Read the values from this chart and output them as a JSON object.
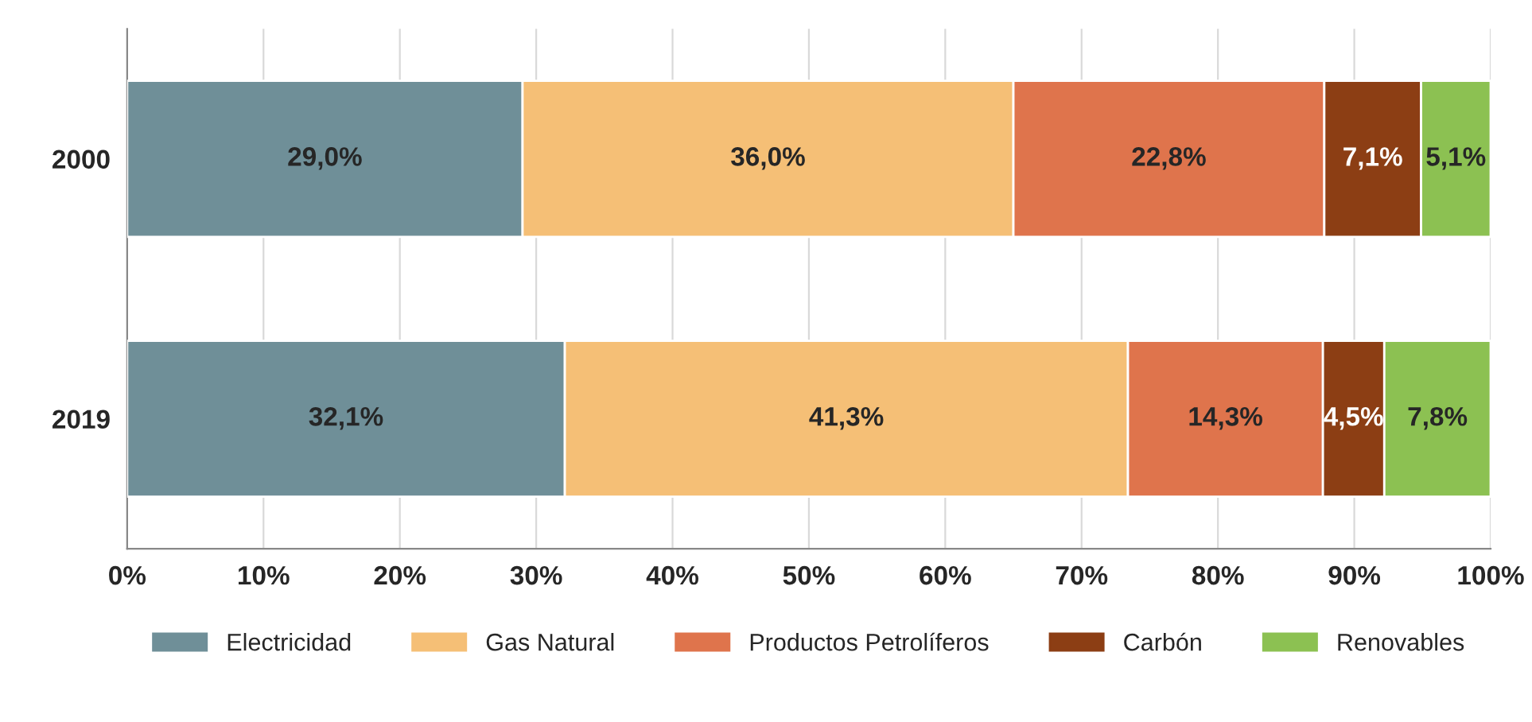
{
  "chart_data": {
    "type": "bar",
    "orientation": "horizontal",
    "stacked": true,
    "categories": [
      "2000",
      "2019"
    ],
    "series": [
      {
        "name": "Electricidad",
        "color": "#6f8f98",
        "values": [
          29.0,
          32.1
        ],
        "value_labels": [
          "29,0%",
          "32,1%"
        ]
      },
      {
        "name": "Gas Natural",
        "color": "#f5bf76",
        "values": [
          36.0,
          41.3
        ],
        "value_labels": [
          "36,0%",
          "41,3%"
        ]
      },
      {
        "name": "Productos Petrolíferos",
        "color": "#df744c",
        "values": [
          22.8,
          14.3
        ],
        "value_labels": [
          "22,8%",
          "14,3%"
        ]
      },
      {
        "name": "Carbón",
        "color": "#8c3e14",
        "values": [
          7.1,
          4.5
        ],
        "value_labels": [
          "7,1%",
          "4,5%"
        ]
      },
      {
        "name": "Renovables",
        "color": "#8cc152",
        "values": [
          5.1,
          7.8
        ],
        "value_labels": [
          "5,1%",
          "7,8%"
        ]
      }
    ],
    "xlim": [
      0,
      100
    ],
    "xticks": [
      {
        "value": 0,
        "label": "0%"
      },
      {
        "value": 10,
        "label": "10%"
      },
      {
        "value": 20,
        "label": "20%"
      },
      {
        "value": 30,
        "label": "30%"
      },
      {
        "value": 40,
        "label": "40%"
      },
      {
        "value": 50,
        "label": "50%"
      },
      {
        "value": 60,
        "label": "60%"
      },
      {
        "value": 70,
        "label": "70%"
      },
      {
        "value": 80,
        "label": "80%"
      },
      {
        "value": 90,
        "label": "90%"
      },
      {
        "value": 100,
        "label": "100%"
      }
    ],
    "grid": "x",
    "legend": "bottom"
  }
}
